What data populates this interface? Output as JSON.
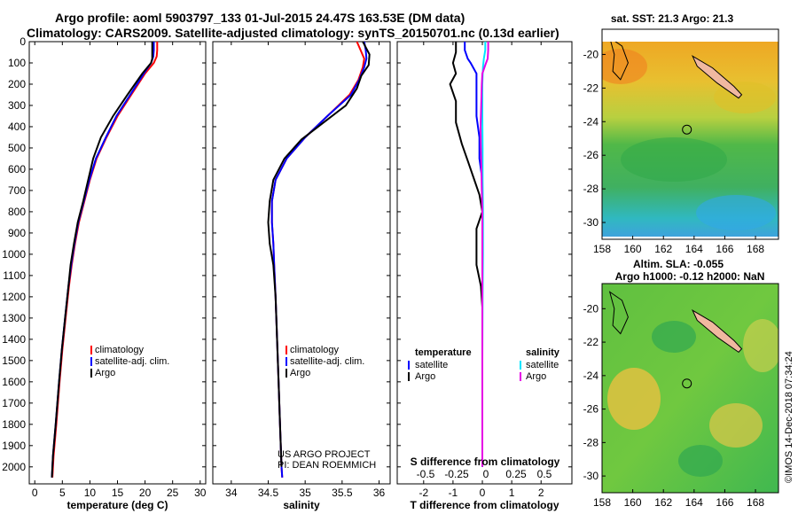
{
  "header": {
    "line1": "Argo profile: aoml 5903797_133 01-Jul-2015 24.47S 163.53E (DM data)",
    "line2": "Climatology: CARS2009. Satellite-adjusted climatology: synTS_20150701.nc (0.13d earlier)"
  },
  "colors": {
    "climatology": "#ff0000",
    "satellite": "#0000ff",
    "argo": "#000000",
    "sal_satellite": "#00e5ff",
    "sal_argo": "#e600e6"
  },
  "chart_data": [
    {
      "type": "line",
      "xlabel": "temperature (deg C)",
      "xlim": [
        -1,
        31
      ],
      "x_ticks": [
        "0",
        "5",
        "10",
        "15",
        "20",
        "25",
        "30"
      ],
      "ylim": [
        0,
        2080
      ],
      "y_ticks": [
        "0",
        "100",
        "200",
        "300",
        "400",
        "500",
        "600",
        "700",
        "800",
        "900",
        "1000",
        "1100",
        "1200",
        "1300",
        "1400",
        "1500",
        "1600",
        "1700",
        "1800",
        "1900",
        "2000"
      ],
      "legend": [
        "climatology",
        "satellite-adj. clim.",
        "Argo"
      ],
      "series": [
        {
          "name": "climatology",
          "color": "#ff0000",
          "points": [
            [
              22.2,
              0
            ],
            [
              22.2,
              40
            ],
            [
              22.1,
              70
            ],
            [
              21.6,
              100
            ],
            [
              20,
              150
            ],
            [
              17.5,
              250
            ],
            [
              15,
              350
            ],
            [
              13,
              450
            ],
            [
              11.2,
              550
            ],
            [
              10,
              650
            ],
            [
              9,
              750
            ],
            [
              8,
              850
            ],
            [
              7.3,
              950
            ],
            [
              6.7,
              1050
            ],
            [
              6.2,
              1150
            ],
            [
              5.6,
              1300
            ],
            [
              5,
              1450
            ],
            [
              4.5,
              1600
            ],
            [
              3.9,
              1800
            ],
            [
              3.4,
              1950
            ],
            [
              3.2,
              2050
            ]
          ]
        },
        {
          "name": "satellite-adj. clim.",
          "color": "#0000ff",
          "points": [
            [
              21.6,
              0
            ],
            [
              21.6,
              40
            ],
            [
              21.5,
              70
            ],
            [
              21.1,
              100
            ],
            [
              19.8,
              150
            ],
            [
              17.3,
              250
            ],
            [
              14.8,
              350
            ],
            [
              12.9,
              450
            ],
            [
              11.1,
              550
            ],
            [
              9.9,
              650
            ],
            [
              8.9,
              750
            ],
            [
              7.9,
              850
            ],
            [
              7.2,
              950
            ],
            [
              6.6,
              1050
            ],
            [
              6.1,
              1150
            ],
            [
              5.5,
              1300
            ],
            [
              4.9,
              1450
            ],
            [
              4.4,
              1600
            ],
            [
              3.8,
              1800
            ],
            [
              3.3,
              1950
            ],
            [
              3.1,
              2050
            ]
          ]
        },
        {
          "name": "Argo",
          "color": "#000000",
          "points": [
            [
              21.3,
              0
            ],
            [
              21.3,
              40
            ],
            [
              21.3,
              80
            ],
            [
              21.1,
              100
            ],
            [
              19.5,
              150
            ],
            [
              16.8,
              250
            ],
            [
              14.2,
              350
            ],
            [
              12,
              450
            ],
            [
              10.6,
              550
            ],
            [
              9.7,
              650
            ],
            [
              8.8,
              750
            ],
            [
              7.8,
              850
            ],
            [
              7.1,
              950
            ],
            [
              6.5,
              1050
            ],
            [
              6.1,
              1150
            ],
            [
              5.5,
              1300
            ],
            [
              4.9,
              1450
            ],
            [
              4.4,
              1600
            ],
            [
              3.8,
              1800
            ],
            [
              3.3,
              1950
            ],
            [
              3.1,
              2050
            ]
          ]
        }
      ]
    },
    {
      "type": "line",
      "xlabel": "salinity",
      "xlim": [
        33.75,
        36.15
      ],
      "x_ticks": [
        "34",
        "34.5",
        "35",
        "35.5",
        "36"
      ],
      "ylim": [
        0,
        2080
      ],
      "legend": [
        "climatology",
        "satellite-adj. clim.",
        "Argo"
      ],
      "annotation": [
        "US ARGO PROJECT",
        "PI: DEAN ROEMMICH"
      ],
      "series": [
        {
          "name": "climatology",
          "color": "#ff0000",
          "points": [
            [
              35.7,
              0
            ],
            [
              35.75,
              40
            ],
            [
              35.8,
              80
            ],
            [
              35.78,
              120
            ],
            [
              35.72,
              180
            ],
            [
              35.6,
              250
            ],
            [
              35.3,
              350
            ],
            [
              35,
              450
            ],
            [
              34.75,
              550
            ],
            [
              34.6,
              650
            ],
            [
              34.55,
              750
            ],
            [
              34.55,
              850
            ],
            [
              34.57,
              950
            ],
            [
              34.58,
              1050
            ],
            [
              34.6,
              1200
            ],
            [
              34.62,
              1400
            ],
            [
              34.64,
              1600
            ],
            [
              34.66,
              1800
            ],
            [
              34.68,
              2000
            ],
            [
              34.69,
              2050
            ]
          ]
        },
        {
          "name": "satellite-adj. clim.",
          "color": "#0000ff",
          "points": [
            [
              35.8,
              0
            ],
            [
              35.82,
              40
            ],
            [
              35.83,
              80
            ],
            [
              35.8,
              120
            ],
            [
              35.73,
              180
            ],
            [
              35.62,
              250
            ],
            [
              35.3,
              350
            ],
            [
              35,
              450
            ],
            [
              34.75,
              550
            ],
            [
              34.6,
              650
            ],
            [
              34.55,
              750
            ],
            [
              34.55,
              850
            ],
            [
              34.57,
              950
            ],
            [
              34.58,
              1050
            ],
            [
              34.6,
              1200
            ],
            [
              34.62,
              1400
            ],
            [
              34.64,
              1600
            ],
            [
              34.66,
              1800
            ],
            [
              34.68,
              2000
            ],
            [
              34.69,
              2050
            ]
          ]
        },
        {
          "name": "Argo",
          "color": "#000000",
          "points": [
            [
              35.78,
              0
            ],
            [
              35.87,
              60
            ],
            [
              35.86,
              110
            ],
            [
              35.76,
              160
            ],
            [
              35.7,
              220
            ],
            [
              35.55,
              300
            ],
            [
              35.25,
              380
            ],
            [
              34.95,
              460
            ],
            [
              34.72,
              550
            ],
            [
              34.57,
              650
            ],
            [
              34.52,
              750
            ],
            [
              34.5,
              850
            ],
            [
              34.52,
              950
            ],
            [
              34.57,
              1050
            ],
            [
              34.6,
              1200
            ],
            [
              34.62,
              1400
            ],
            [
              34.64,
              1600
            ],
            [
              34.66,
              1800
            ],
            [
              34.68,
              2000
            ]
          ]
        }
      ]
    },
    {
      "type": "line",
      "xlabel": "T difference from climatology",
      "xlim": [
        -2.9,
        3.05
      ],
      "x_ticks": [
        "-2",
        "-1",
        "0",
        "1",
        "2"
      ],
      "top_label": "S difference from climatology",
      "top_ticks": [
        "-0.5",
        "-0.25",
        "0",
        "0.25",
        "0.5"
      ],
      "ylim": [
        0,
        2080
      ],
      "legend_left": {
        "title": "temperature",
        "items": [
          "satellite",
          "Argo"
        ]
      },
      "legend_right": {
        "title": "salinity",
        "items": [
          "satellite",
          "Argo"
        ]
      },
      "series": [
        {
          "name": "temperature satellite",
          "color": "#0000ff",
          "points": [
            [
              -0.6,
              0
            ],
            [
              -0.6,
              40
            ],
            [
              -0.5,
              80
            ],
            [
              -0.4,
              100
            ],
            [
              -0.2,
              150
            ],
            [
              -0.2,
              250
            ],
            [
              -0.2,
              350
            ],
            [
              -0.1,
              450
            ],
            [
              -0.1,
              550
            ],
            [
              0,
              650
            ],
            [
              0,
              800
            ],
            [
              0,
              1000
            ],
            [
              0,
              1200
            ],
            [
              0,
              1500
            ],
            [
              0,
              2000
            ]
          ]
        },
        {
          "name": "temperature Argo",
          "color": "#000000",
          "points": [
            [
              -0.9,
              0
            ],
            [
              -0.9,
              50
            ],
            [
              -1.0,
              100
            ],
            [
              -0.9,
              150
            ],
            [
              -1.1,
              200
            ],
            [
              -0.9,
              280
            ],
            [
              -0.9,
              380
            ],
            [
              -0.7,
              480
            ],
            [
              -0.5,
              560
            ],
            [
              -0.3,
              640
            ],
            [
              -0.1,
              720
            ],
            [
              0,
              800
            ],
            [
              -0.2,
              880
            ],
            [
              -0.2,
              950
            ],
            [
              -0.2,
              1050
            ],
            [
              -0.05,
              1150
            ],
            [
              0,
              1250
            ],
            [
              0,
              1500
            ],
            [
              0,
              2000
            ]
          ]
        },
        {
          "name": "salinity satellite",
          "color": "#00e5ff",
          "points": [
            [
              0.1,
              0
            ],
            [
              0.1,
              40
            ],
            [
              0.05,
              80
            ],
            [
              0.02,
              120
            ],
            [
              0,
              200
            ],
            [
              0,
              350
            ],
            [
              0.01,
              500
            ],
            [
              0.01,
              650
            ],
            [
              0.02,
              800
            ],
            [
              0.02,
              1000
            ],
            [
              0.01,
              1200
            ],
            [
              0,
              1500
            ],
            [
              0,
              2000
            ]
          ]
        },
        {
          "name": "salinity Argo",
          "color": "#e600e6",
          "points": [
            [
              0.2,
              0
            ],
            [
              0.2,
              40
            ],
            [
              0.18,
              80
            ],
            [
              0.1,
              110
            ],
            [
              0,
              150
            ],
            [
              -0.02,
              200
            ],
            [
              -0.04,
              300
            ],
            [
              -0.06,
              400
            ],
            [
              -0.05,
              500
            ],
            [
              -0.03,
              600
            ],
            [
              -0.02,
              700
            ],
            [
              0,
              800
            ],
            [
              0,
              1000
            ],
            [
              0,
              1500
            ],
            [
              0,
              2000
            ]
          ]
        }
      ]
    },
    {
      "type": "heatmap",
      "title": "sat. SST: 21.3 Argo: 21.3",
      "xlim": [
        158,
        169.5
      ],
      "ylim": [
        -31,
        -18.5
      ],
      "x_ticks": [
        "158",
        "160",
        "162",
        "164",
        "166",
        "168"
      ],
      "y_ticks": [
        "-20",
        "-22",
        "-24",
        "-26",
        "-28",
        "-30"
      ],
      "marker": [
        163.53,
        -24.47
      ]
    },
    {
      "type": "heatmap",
      "title": "Altim. SLA: -0.055",
      "subtitle": "Argo h1000: -0.12 h2000: NaN",
      "xlim": [
        158,
        169.5
      ],
      "ylim": [
        -31,
        -18.5
      ],
      "x_ticks": [
        "158",
        "160",
        "162",
        "164",
        "166",
        "168"
      ],
      "y_ticks": [
        "-20",
        "-22",
        "-24",
        "-26",
        "-28",
        "-30"
      ],
      "marker": [
        163.53,
        -24.47
      ]
    }
  ],
  "footer": "©IMOS 14-Dec-2018 07:34:24"
}
